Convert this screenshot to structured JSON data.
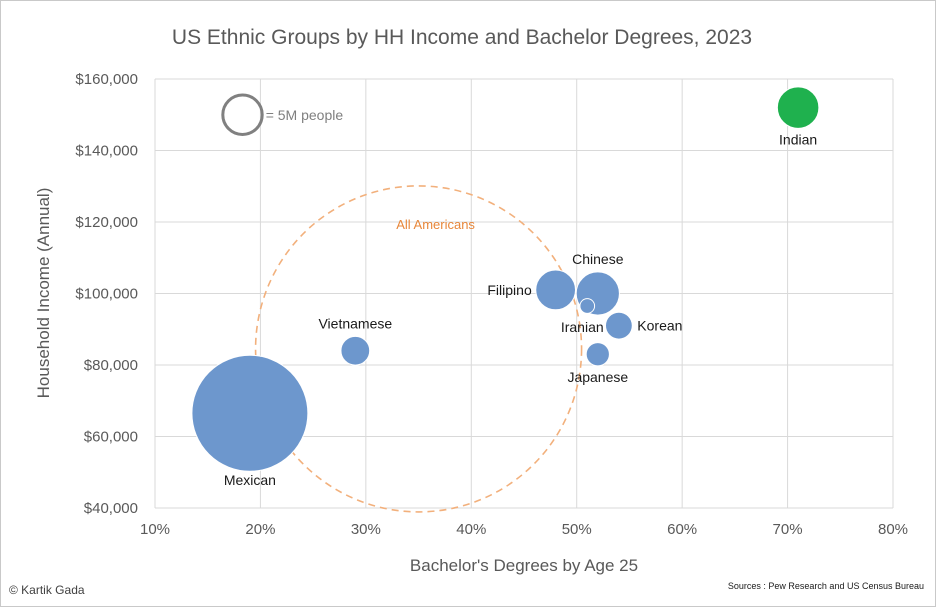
{
  "chart_data": {
    "type": "scatter",
    "subtype": "bubble",
    "title": "US Ethnic Groups by HH Income and Bachelor Degrees, 2023",
    "xlabel": "Bachelor's Degrees by Age 25",
    "ylabel": "Household Income (Annual)",
    "xlim": [
      0.1,
      0.8
    ],
    "ylim": [
      40000,
      160000
    ],
    "x_ticks": [
      0.1,
      0.2,
      0.3,
      0.4,
      0.5,
      0.6,
      0.7,
      0.8
    ],
    "x_tick_labels": [
      "10%",
      "20%",
      "30%",
      "40%",
      "50%",
      "60%",
      "70%",
      "80%"
    ],
    "y_ticks": [
      40000,
      60000,
      80000,
      100000,
      120000,
      140000,
      160000
    ],
    "y_tick_labels": [
      "$40,000",
      "$60,000",
      "$80,000",
      "$100,000",
      "$120,000",
      "$140,000",
      "$160,000"
    ],
    "grid": true,
    "size_legend": {
      "label": "= 5M people",
      "population_millions": 5,
      "x": 0.183,
      "y": 150000
    },
    "series": [
      {
        "label": "Mexican",
        "x": 0.19,
        "y": 66500,
        "population_millions": 37.4,
        "color": "#6d97cd",
        "label_pos": "below"
      },
      {
        "label": "Vietnamese",
        "x": 0.29,
        "y": 84000,
        "population_millions": 2.3,
        "color": "#6d97cd",
        "label_pos": "above"
      },
      {
        "label": "Filipino",
        "x": 0.48,
        "y": 101000,
        "population_millions": 4.4,
        "color": "#6d97cd",
        "label_pos": "left"
      },
      {
        "label": "Chinese",
        "x": 0.52,
        "y": 100000,
        "population_millions": 5.2,
        "color": "#6d97cd",
        "label_pos": "above"
      },
      {
        "label": "Iranian",
        "x": 0.51,
        "y": 96500,
        "population_millions": 0.6,
        "color": "#6d97cd",
        "label_pos": "below"
      },
      {
        "label": "Korean",
        "x": 0.54,
        "y": 91000,
        "population_millions": 2.0,
        "color": "#6d97cd",
        "label_pos": "right"
      },
      {
        "label": "Japanese",
        "x": 0.52,
        "y": 83000,
        "population_millions": 1.5,
        "color": "#6d97cd",
        "label_pos": "below"
      },
      {
        "label": "Indian",
        "x": 0.71,
        "y": 152000,
        "population_millions": 4.8,
        "color": "#1fb14e",
        "label_pos": "below"
      }
    ],
    "reference_circle": {
      "label": "All Americans",
      "x": 0.35,
      "y": 84500,
      "style": "dashed",
      "color": "#f2b07c"
    }
  },
  "footer": {
    "copyright": "© Kartik Gada",
    "sources": "Sources : Pew Research and US Census Bureau"
  }
}
